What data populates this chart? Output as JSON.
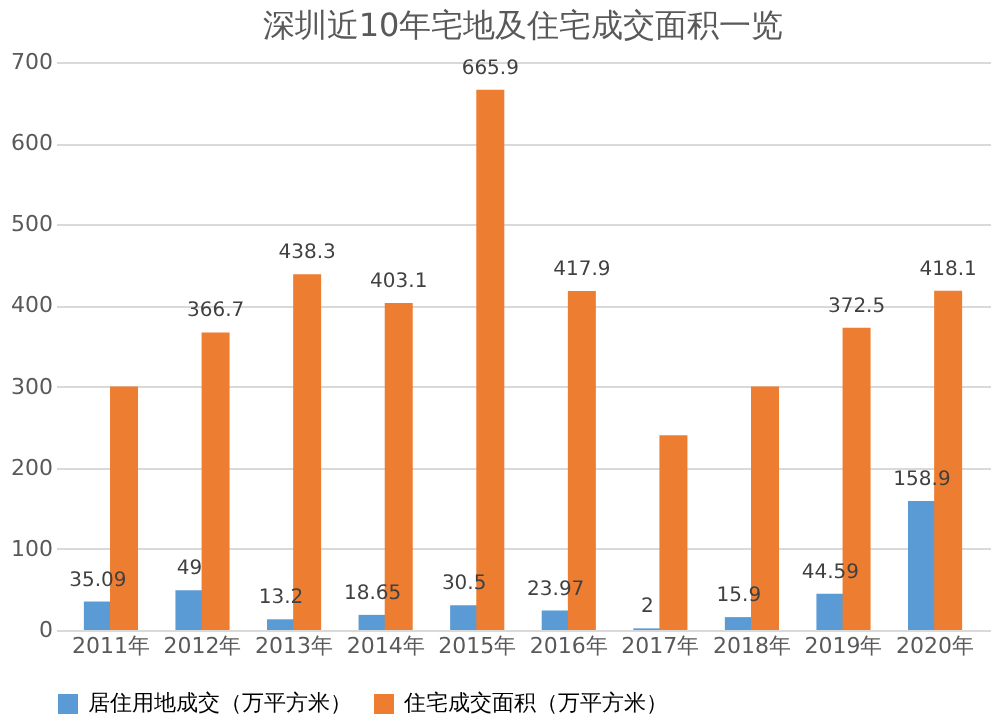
{
  "chart_data": {
    "type": "bar",
    "title": "深圳近10年宅地及住宅成交面积一览",
    "categories": [
      "2011年",
      "2012年",
      "2013年",
      "2014年",
      "2015年",
      "2016年",
      "2017年",
      "2018年",
      "2019年",
      "2020年"
    ],
    "series": [
      {
        "name": "居住用地成交（万平方米）",
        "color": "#5b9bd5",
        "values": [
          35.09,
          49,
          13.2,
          18.65,
          30.5,
          23.97,
          2,
          15.9,
          44.59,
          158.9
        ],
        "value_labels": [
          "35.09",
          "49",
          "13.2",
          "18.65",
          "30.5",
          "23.97",
          "2",
          "15.9",
          "44.59",
          "158.9"
        ]
      },
      {
        "name": "住宅成交面积（万平方米）",
        "color": "#ed7d31",
        "values": [
          300,
          366.7,
          438.3,
          403.1,
          665.9,
          417.9,
          240,
          300,
          372.5,
          418.1
        ],
        "value_labels": [
          null,
          "366.7",
          "438.3",
          "403.1",
          "665.9",
          "417.9",
          null,
          null,
          "372.5",
          "418.1"
        ]
      }
    ],
    "ylim": [
      0,
      700
    ],
    "yticks": [
      0,
      100,
      200,
      300,
      400,
      500,
      600,
      700
    ],
    "grid": "y",
    "legend": "bottom"
  }
}
